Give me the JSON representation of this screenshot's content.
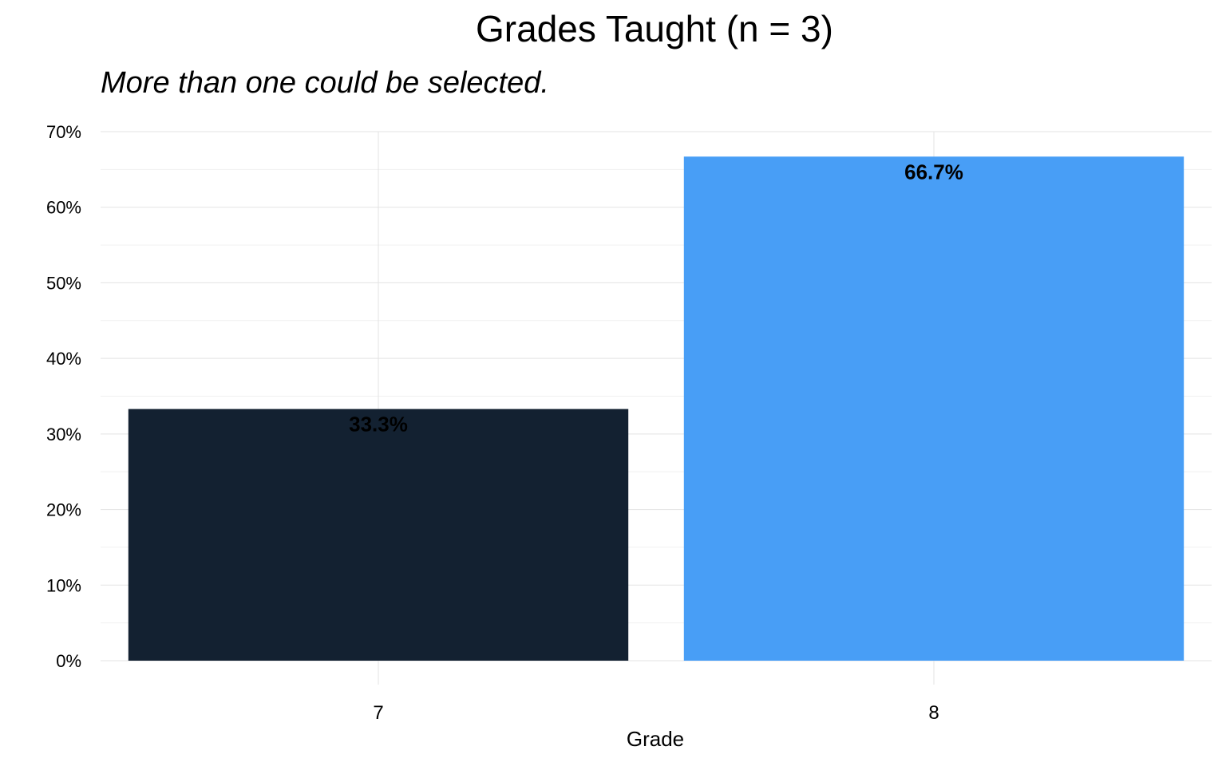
{
  "chart_data": {
    "type": "bar",
    "title": "Grades Taught (n = 3)",
    "subtitle": "More than one could be selected.",
    "xlabel": "Grade",
    "ylabel": "",
    "categories": [
      "7",
      "8"
    ],
    "values": [
      33.3,
      66.7
    ],
    "value_labels": [
      "33.3%",
      "66.7%"
    ],
    "bar_colors": [
      "#132131",
      "#489ef6"
    ],
    "ylim": [
      0,
      70
    ],
    "yticks": [
      0,
      10,
      20,
      30,
      40,
      50,
      60,
      70
    ],
    "ytick_labels": [
      "0%",
      "10%",
      "20%",
      "30%",
      "40%",
      "50%",
      "60%",
      "70%"
    ],
    "grid": true,
    "legend": "none"
  }
}
